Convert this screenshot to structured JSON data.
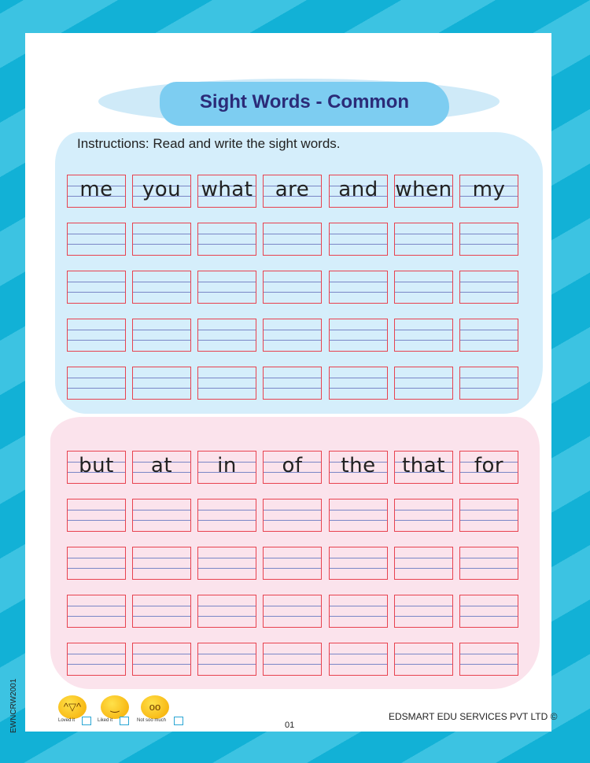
{
  "title": "Sight Words - Common",
  "instructions": "Instructions: Read and write the sight words.",
  "blue_words": [
    "me",
    "you",
    "what",
    "are",
    "and",
    "when",
    "my"
  ],
  "pink_words": [
    "but",
    "at",
    "in",
    "of",
    "the",
    "that",
    "for"
  ],
  "ratings": [
    {
      "label": "Loved it",
      "icon": "laughing-face-icon"
    },
    {
      "label": "Liked it",
      "icon": "smiling-face-icon"
    },
    {
      "label": "Not soo much",
      "icon": "eye-roll-face-icon"
    }
  ],
  "code": "EWNCRW2001",
  "publisher": "EDSMART EDU SERVICES PVT LTD ©",
  "page_number": "01",
  "colors": {
    "title": "#2b2b78",
    "box_border": "#e8424f",
    "guide_line": "#7a86c6",
    "blue_bg": "#d5eefb",
    "pink_bg": "#fbe3ec"
  }
}
